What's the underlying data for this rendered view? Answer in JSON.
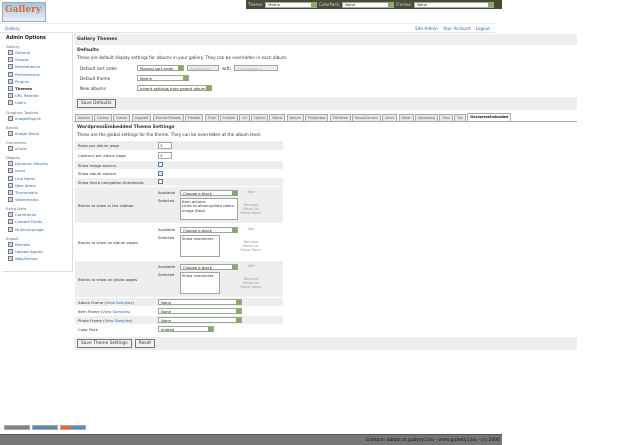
{
  "logo_text": "Gallery",
  "topbar": {
    "theme_label": "Theme:",
    "theme_value": "Matrix",
    "colorpack_label": "ColorPack:",
    "colorpack_value": "None",
    "frames_label": "Frames:",
    "frames_value": "None"
  },
  "breadcrumb": "Gallery",
  "user_links": [
    "Site Admin",
    "Your Account",
    "Logout"
  ],
  "sidebar": {
    "title": "Admin Options",
    "groups": [
      {
        "name": "Gallery",
        "items": [
          "General",
          "Groups",
          "Maintenance",
          "Performance",
          "Plugins",
          "Themes",
          "URL Rewrite",
          "Users"
        ]
      },
      {
        "name": "Graphics Toolkits",
        "items": [
          "ImageMagick"
        ]
      },
      {
        "name": "Blocks",
        "items": [
          "Image Block"
        ]
      },
      {
        "name": "Commerce",
        "items": [
          "eCard"
        ]
      },
      {
        "name": "Display",
        "items": [
          "Dynamic Albums",
          "Icons",
          "Link Items",
          "New Items",
          "Thumbnails",
          "Watermarks"
        ]
      },
      {
        "name": "Extra Data",
        "items": [
          "Comments",
          "Custom Fields",
          "MultiLanguage"
        ]
      },
      {
        "name": "Import",
        "items": [
          "Remote",
          "Upload Applet",
          "Web/Server"
        ]
      }
    ],
    "current": "Themes"
  },
  "main": {
    "title": "Gallery Themes",
    "defaults": {
      "heading": "Defaults",
      "description": "These are default display settings for albums in your gallery. They can be overridden in each album.",
      "sort_label": "Default sort order",
      "sort_value": "Manual sort order",
      "direction_value": "Ascending",
      "with_label": "with",
      "with_value": "« no preset »",
      "theme_label": "Default theme",
      "theme_value": "Matrix",
      "new_albums_label": "New albums",
      "new_albums_value": "Inherit settings from parent album",
      "save_button": "Save Defaults"
    },
    "tabs": [
      "Ajaxian",
      "Carbon",
      "Classic",
      "Copyleft",
      "EclecticThreads",
      "Flexible",
      "Fluid",
      "ForSale",
      "G3",
      "Hybrid",
      "Matrix",
      "Nature",
      "PGlightbox",
      "PGtheme",
      "RoundCorners",
      "Siriux",
      "Slider",
      "Splashang",
      "Tiles",
      "Tile",
      "WordpressEmbedded"
    ],
    "active_tab": "WordpressEmbedded",
    "theme_settings": {
      "heading": "WordpressEmbedded Theme Settings",
      "description": "These are the global settings for the theme. They can be overridden at the album level.",
      "rows_label": "Rows per album page",
      "rows_value": "3",
      "cols_label": "Columns per album page",
      "cols_value": "3",
      "image_owners_label": "Show image owners",
      "image_owners_checked": false,
      "album_owners_label": "Show album owners",
      "album_owners_checked": true,
      "micro_nav_label": "Show micro navigation thumbnails",
      "micro_nav_checked": false,
      "available_label": "Available",
      "selected_label": "Selected",
      "choose_block": "Choose a block",
      "add": "Add",
      "remove": "Remove",
      "move_up": "Move Up",
      "move_down": "Move Down",
      "sidebar_blocks_label": "Blocks to show in the sidebar",
      "sidebar_blocks": [
        "Item actions",
        "Links to album/photo peers",
        "Image Block"
      ],
      "album_blocks_label": "Blocks to show on album pages",
      "album_blocks": [
        "Show comments"
      ],
      "photo_blocks_label": "Blocks to show on photo pages",
      "photo_blocks": [
        "Show comments"
      ],
      "view_samples": "View Samples",
      "album_frame_label": "Album Frame",
      "album_frame_value": "None",
      "item_frame_label": "Item Frame",
      "item_frame_value": "None",
      "photo_frame_label": "Photo Frame",
      "photo_frame_value": "None",
      "color_pack_label": "Color Pack",
      "color_pack_value": "embed",
      "save_button": "Save Theme Settings",
      "reset_button": "Reset"
    }
  },
  "footer": "Contact: admin at gallery2.hu - www.gallery2.hu - (c) 2006",
  "colors": {
    "link": "#3366aa",
    "topbar": "#4a4a3a",
    "footer": "#777777"
  }
}
